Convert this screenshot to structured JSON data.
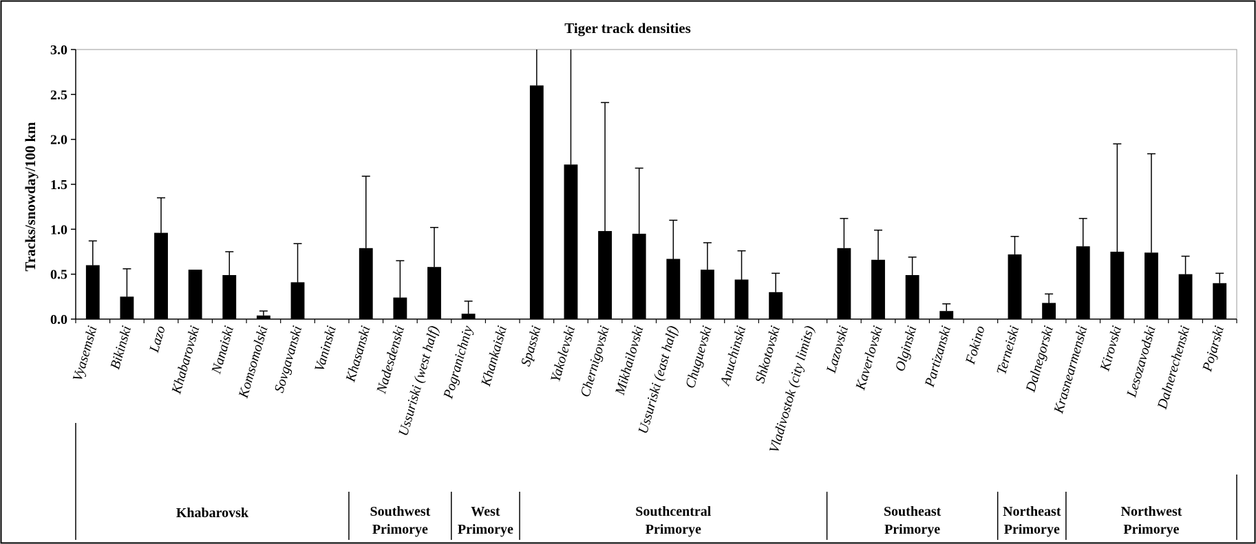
{
  "chart_data": {
    "type": "bar",
    "title": "Tiger track densities",
    "ylabel": "Tracks/snowday/100 km",
    "xlabel": "",
    "ylim": [
      0,
      3.0
    ],
    "yticks": [
      "0.0",
      "0.5",
      "1.0",
      "1.5",
      "2.0",
      "2.5",
      "3.0"
    ],
    "error_bars": true,
    "grid": false,
    "categories": [
      "Vyasemski",
      "Bikinski",
      "Lazo",
      "Khabarovski",
      "Nanaiski",
      "Komsomolski",
      "Sovgavanski",
      "Vaninski",
      "Khasanski",
      "Nadesdenski",
      "Ussuriski (west half)",
      "Pogranichniy",
      "Khankaiski",
      "Spasski",
      "Yakolevski",
      "Chernigovski",
      "Mikhailovski",
      "Ussuriski (east half)",
      "Chuguevski",
      "Anuchinski",
      "Shkotovski",
      "Vladivostok (city limits)",
      "Lazovski",
      "Kaverlovski",
      "Olginski",
      "Partizanski",
      "Fokino",
      "Terneiski",
      "Dalnegorski",
      "Krasnearmenski",
      "Kirovski",
      "Lesozavodski",
      "Dalnerechenski",
      "Pojarski"
    ],
    "values": [
      0.6,
      0.25,
      0.96,
      0.55,
      0.49,
      0.04,
      0.41,
      0.0,
      0.79,
      0.24,
      0.58,
      0.06,
      0.0,
      2.6,
      1.72,
      0.98,
      0.95,
      0.67,
      0.55,
      0.44,
      0.3,
      0.0,
      0.79,
      0.66,
      0.49,
      0.09,
      0.0,
      0.72,
      0.18,
      0.81,
      0.75,
      0.74,
      0.5,
      0.4
    ],
    "errors": [
      0.27,
      0.31,
      0.39,
      0.0,
      0.26,
      0.05,
      0.43,
      0.0,
      0.8,
      0.41,
      0.44,
      0.14,
      0.0,
      1.0,
      1.6,
      1.43,
      0.73,
      0.43,
      0.3,
      0.32,
      0.21,
      0.0,
      0.33,
      0.33,
      0.2,
      0.08,
      0.0,
      0.2,
      0.1,
      0.31,
      1.2,
      1.1,
      0.2,
      0.11
    ],
    "regions": [
      {
        "name": "Khabarovsk",
        "lines": [
          "Khabarovsk"
        ],
        "start": 0,
        "end": 7
      },
      {
        "name": "Southwest Primorye",
        "lines": [
          "Southwest",
          "Primorye"
        ],
        "start": 8,
        "end": 10
      },
      {
        "name": "West Primorye",
        "lines": [
          "West",
          "Primorye"
        ],
        "start": 11,
        "end": 12
      },
      {
        "name": "Southcentral Primorye",
        "lines": [
          "Southcentral",
          "Primorye"
        ],
        "start": 13,
        "end": 21
      },
      {
        "name": "Southeast Primorye",
        "lines": [
          "Southeast",
          "Primorye"
        ],
        "start": 22,
        "end": 26
      },
      {
        "name": "Northeast Primorye",
        "lines": [
          "Northeast",
          "Primorye"
        ],
        "start": 27,
        "end": 28
      },
      {
        "name": "Northwest Primorye",
        "lines": [
          "Northwest",
          "Primorye"
        ],
        "start": 29,
        "end": 33
      }
    ],
    "bar_color": "#000000"
  }
}
